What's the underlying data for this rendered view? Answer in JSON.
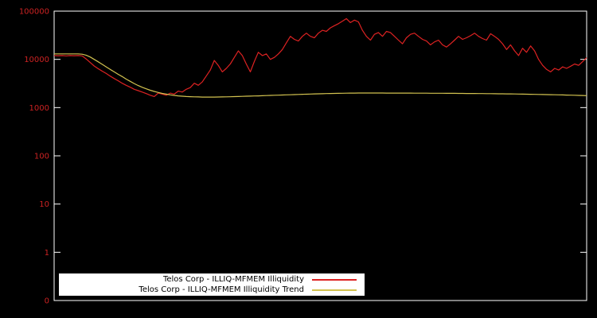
{
  "chart_data": {
    "type": "line",
    "title": "",
    "background": "#000000",
    "axis": {
      "yscale": "log",
      "ylim": [
        0.1,
        100000
      ],
      "grid": false,
      "border_color": "#ffffff",
      "label_color": "#cc2222",
      "yticks": [
        {
          "label": "100000",
          "value": 100000
        },
        {
          "label": "10000",
          "value": 10000
        },
        {
          "label": "1000",
          "value": 1000
        },
        {
          "label": "100",
          "value": 100
        },
        {
          "label": "10",
          "value": 10
        },
        {
          "label": "1",
          "value": 1
        },
        {
          "label": "0",
          "value": 0.1
        }
      ]
    },
    "legend": {
      "position": "bottom-left",
      "background": "#ffffff",
      "entries": [
        {
          "label": "Telos Corp - ILLIQ-MFMEM Illiquidity",
          "color": "#dd2222"
        },
        {
          "label": "Telos Corp - ILLIQ-MFMEM Illiquidity Trend",
          "color": "#d2c250"
        }
      ]
    },
    "series": [
      {
        "name": "Telos Corp - ILLIQ-MFMEM Illiquidity",
        "color": "#dd2222",
        "values": [
          12000,
          11900,
          12000,
          11800,
          12000,
          11900,
          12000,
          11800,
          10200,
          8600,
          7300,
          6400,
          5700,
          5100,
          4500,
          4000,
          3600,
          3200,
          2900,
          2650,
          2400,
          2250,
          2100,
          1950,
          1800,
          1700,
          2000,
          1900,
          1800,
          2000,
          1900,
          2200,
          2100,
          2400,
          2600,
          3200,
          2900,
          3400,
          4500,
          6000,
          9500,
          7500,
          5500,
          6500,
          8000,
          11000,
          15000,
          12000,
          8000,
          5500,
          9000,
          14000,
          12000,
          13000,
          10000,
          11000,
          13000,
          16000,
          22000,
          30000,
          26000,
          24000,
          30000,
          35000,
          30000,
          28000,
          35000,
          40000,
          38000,
          45000,
          50000,
          55000,
          62000,
          70000,
          58000,
          65000,
          60000,
          40000,
          30000,
          25000,
          33000,
          36000,
          30000,
          38000,
          36000,
          30000,
          25000,
          21000,
          28000,
          33000,
          35000,
          30000,
          26000,
          24000,
          20000,
          23000,
          25000,
          20000,
          18000,
          21000,
          25000,
          30000,
          26000,
          28000,
          31000,
          35000,
          30000,
          27000,
          25000,
          34000,
          30000,
          26000,
          21000,
          16000,
          20000,
          15000,
          12000,
          17000,
          14000,
          19000,
          15000,
          10000,
          7500,
          6200,
          5500,
          6500,
          6000,
          7000,
          6500,
          7200,
          8000,
          7500,
          9000,
          10800
        ]
      },
      {
        "name": "Telos Corp - ILLIQ-MFMEM Illiquidity Trend",
        "color": "#d2c250",
        "values": [
          13000,
          13000,
          13000,
          13000,
          13000,
          13000,
          13000,
          12800,
          12200,
          11200,
          10000,
          8900,
          7900,
          7000,
          6200,
          5500,
          4900,
          4400,
          3900,
          3500,
          3150,
          2870,
          2640,
          2450,
          2290,
          2160,
          2060,
          1970,
          1900,
          1840,
          1790,
          1750,
          1720,
          1700,
          1685,
          1672,
          1662,
          1655,
          1650,
          1650,
          1652,
          1656,
          1662,
          1670,
          1680,
          1690,
          1700,
          1710,
          1720,
          1730,
          1740,
          1750,
          1762,
          1775,
          1788,
          1800,
          1812,
          1824,
          1836,
          1848,
          1860,
          1872,
          1884,
          1896,
          1908,
          1920,
          1930,
          1940,
          1950,
          1960,
          1970,
          1978,
          1986,
          1992,
          1997,
          2000,
          2002,
          2003,
          2004,
          2004,
          2004,
          2003,
          2002,
          2001,
          2000,
          1999,
          1998,
          1997,
          1996,
          1995,
          1993,
          1991,
          1989,
          1987,
          1985,
          1983,
          1981,
          1979,
          1977,
          1975,
          1972,
          1969,
          1966,
          1963,
          1960,
          1957,
          1954,
          1950,
          1946,
          1942,
          1938,
          1934,
          1930,
          1925,
          1920,
          1914,
          1908,
          1902,
          1896,
          1890,
          1883,
          1876,
          1869,
          1861,
          1853,
          1845,
          1837,
          1828,
          1819,
          1810,
          1800,
          1790,
          1780,
          1770
        ]
      }
    ]
  }
}
